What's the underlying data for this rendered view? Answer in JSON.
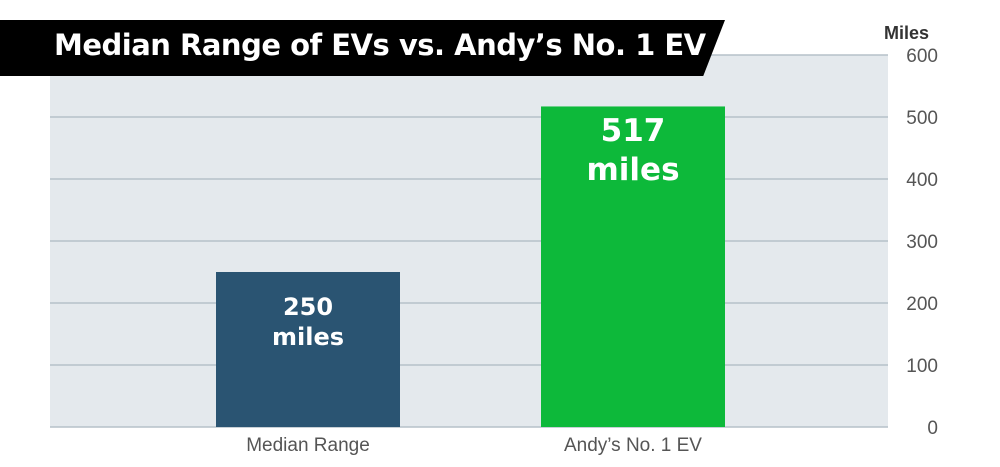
{
  "chart_data": {
    "type": "bar",
    "title": "Median Range of EVs vs. Andy’s No. 1 EV",
    "ylabel": "Miles",
    "ylim": [
      0,
      600
    ],
    "yticks": [
      0,
      100,
      200,
      300,
      400,
      500,
      600
    ],
    "y_axis_side": "right",
    "grid": true,
    "categories": [
      "Median Range",
      "Andy’s No. 1 EV"
    ],
    "values": [
      250,
      517
    ],
    "bar_colors": [
      "#2a5472",
      "#0db93a"
    ],
    "data_labels": [
      {
        "value": "250",
        "unit": "miles"
      },
      {
        "value": "517",
        "unit": "miles"
      }
    ]
  },
  "colors": {
    "plot_background": "#e4e9ed",
    "gridline": "#b5c1c9",
    "title_banner": "#000000",
    "title_text": "#ffffff",
    "axis_text": "#555555"
  }
}
